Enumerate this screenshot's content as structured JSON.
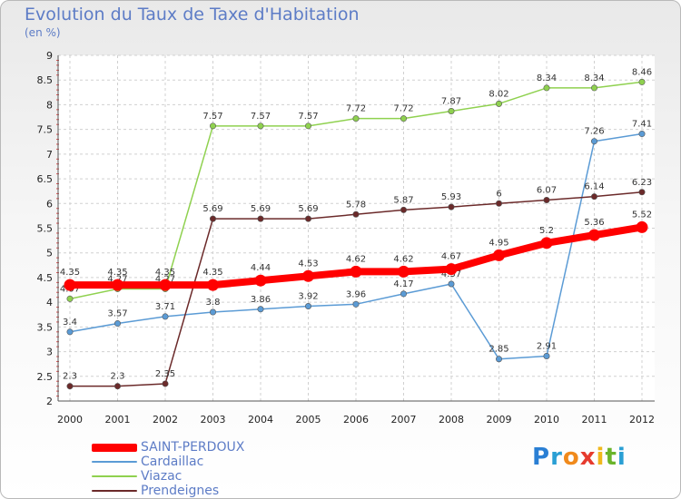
{
  "title": "Evolution du Taux de Taxe d'Habitation",
  "unit_label": "(en %)",
  "logo": {
    "letters": [
      "P",
      "r",
      "o",
      "x",
      "i",
      "t",
      "i"
    ],
    "colors": [
      "#2a7fd4",
      "#2a9fd4",
      "#f08a1c",
      "#e63b2e",
      "#f0b81c",
      "#6ab42a",
      "#2a9fd4"
    ]
  },
  "chart_data": {
    "type": "line",
    "title": "Evolution du Taux de Taxe d'Habitation",
    "ylabel": "(en %)",
    "xlabel": "",
    "ylim": [
      2,
      9
    ],
    "yticks": [
      "2",
      "2.5",
      "3",
      "3.5",
      "4",
      "4.5",
      "5",
      "5.5",
      "6",
      "6.5",
      "7",
      "7.5",
      "8",
      "8.5",
      "9"
    ],
    "x": [
      "2000",
      "2001",
      "2002",
      "2003",
      "2004",
      "2005",
      "2006",
      "2007",
      "2008",
      "2009",
      "2010",
      "2011",
      "2012"
    ],
    "grid": true,
    "legend_position": "bottom-left",
    "series": [
      {
        "name": "SAINT-PERDOUX",
        "color": "#ff0000",
        "thick": true,
        "values": [
          4.35,
          4.35,
          4.35,
          4.35,
          4.44,
          4.53,
          4.62,
          4.62,
          4.67,
          4.95,
          5.2,
          5.36,
          5.52
        ],
        "labels": [
          "4.35",
          "4.35",
          "4.35",
          "4.35",
          "4.44",
          "4.53",
          "4.62",
          "4.62",
          "4.67",
          "4.95",
          "5.2",
          "5.36",
          "5.52"
        ]
      },
      {
        "name": "Cardaillac",
        "color": "#5b9bd5",
        "values": [
          3.4,
          3.57,
          3.71,
          3.8,
          3.86,
          3.92,
          3.96,
          4.17,
          4.37,
          2.85,
          2.91,
          7.26,
          7.41
        ],
        "labels": [
          "3.4",
          "3.57",
          "3.71",
          "3.8",
          "3.86",
          "3.92",
          "3.96",
          "4.17",
          "4.37",
          "2.85",
          "2.91",
          "7.26",
          "7.41"
        ]
      },
      {
        "name": "Viazac",
        "color": "#8fd14f",
        "values": [
          4.07,
          4.27,
          4.27,
          7.57,
          7.57,
          7.57,
          7.72,
          7.72,
          7.87,
          8.02,
          8.34,
          8.34,
          8.46
        ],
        "labels": [
          "4.07",
          "4.27",
          "4.27",
          "7.57",
          "7.57",
          "7.57",
          "7.72",
          "7.72",
          "7.87",
          "8.02",
          "8.34",
          "8.34",
          "8.46"
        ]
      },
      {
        "name": "Prendeignes",
        "color": "#6b2a2a",
        "values": [
          2.3,
          2.3,
          2.35,
          5.69,
          5.69,
          5.69,
          5.78,
          5.87,
          5.93,
          6,
          6.07,
          6.14,
          6.23
        ],
        "labels": [
          "2.3",
          "2.3",
          "2.35",
          "5.69",
          "5.69",
          "5.69",
          "5.78",
          "5.87",
          "5.93",
          "6",
          "6.07",
          "6.14",
          "6.23"
        ]
      }
    ]
  }
}
